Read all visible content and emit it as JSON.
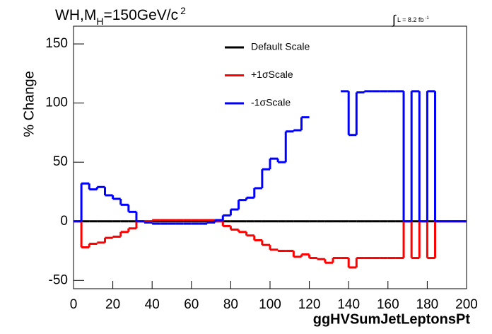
{
  "chart_data": {
    "type": "histogram",
    "title_parts": [
      "WH,M",
      "H",
      "=150GeV/c",
      "2"
    ],
    "annotation_parts": [
      "∫",
      "L = 8.2 fb",
      "-1"
    ],
    "x_label": "ggHVSumJetLeptonsPt",
    "y_label": "% Change",
    "bins": [
      0,
      4,
      8,
      12,
      16,
      20,
      24,
      28,
      32,
      36,
      40,
      44,
      48,
      52,
      56,
      60,
      64,
      68,
      72,
      76,
      80,
      84,
      88,
      92,
      96,
      100,
      104,
      108,
      112,
      116,
      120,
      124,
      128,
      132,
      136,
      140,
      144,
      148,
      152,
      156,
      160,
      164,
      168,
      172,
      176,
      180,
      184,
      188,
      192,
      196,
      200
    ],
    "series": [
      {
        "name": "Default Scale",
        "color": "#000000",
        "values": [
          0,
          0,
          0,
          0,
          0,
          0,
          0,
          0,
          0,
          0,
          0,
          0,
          0,
          0,
          0,
          0,
          0,
          0,
          0,
          0,
          0,
          0,
          0,
          0,
          0,
          0,
          0,
          0,
          0,
          0,
          0,
          0,
          0,
          0,
          0,
          0,
          0,
          0,
          0,
          0,
          0,
          0,
          0,
          0,
          0,
          0,
          0,
          0,
          0,
          0
        ]
      },
      {
        "name": "+1σScale",
        "color": "#ff0000",
        "values": [
          0,
          -22,
          -19,
          -18,
          -14,
          -13,
          -9,
          -6,
          0,
          0,
          1,
          1,
          1,
          1,
          1,
          1,
          1,
          1,
          0,
          -4,
          -7,
          -9,
          -12,
          -16,
          -20,
          -24,
          -25,
          -25,
          -30,
          -28,
          -31,
          -32,
          -35,
          -31,
          -31,
          -39,
          -31,
          -31,
          -31,
          -31,
          -31,
          -31,
          0,
          -31,
          0,
          -31,
          0,
          0,
          0,
          0
        ]
      },
      {
        "name": "-1σScale",
        "color": "#0000ff",
        "values": [
          0,
          32,
          27,
          29,
          22,
          19,
          14,
          8,
          0,
          -1,
          -2,
          -2,
          -2,
          -2,
          -2,
          -2,
          -2,
          -1,
          1,
          5,
          10,
          18,
          20,
          28,
          44,
          53,
          50,
          76,
          77,
          88,
          null,
          null,
          null,
          null,
          110,
          73,
          109,
          110,
          110,
          110,
          110,
          110,
          0,
          110,
          0,
          110,
          0,
          0,
          0,
          0
        ]
      }
    ],
    "xlim": [
      0,
      200
    ],
    "xticks": [
      0,
      20,
      40,
      60,
      80,
      100,
      120,
      140,
      160,
      180,
      200
    ],
    "ylim": [
      -57,
      165
    ],
    "yticks": [
      -50,
      0,
      50,
      100,
      150
    ]
  }
}
